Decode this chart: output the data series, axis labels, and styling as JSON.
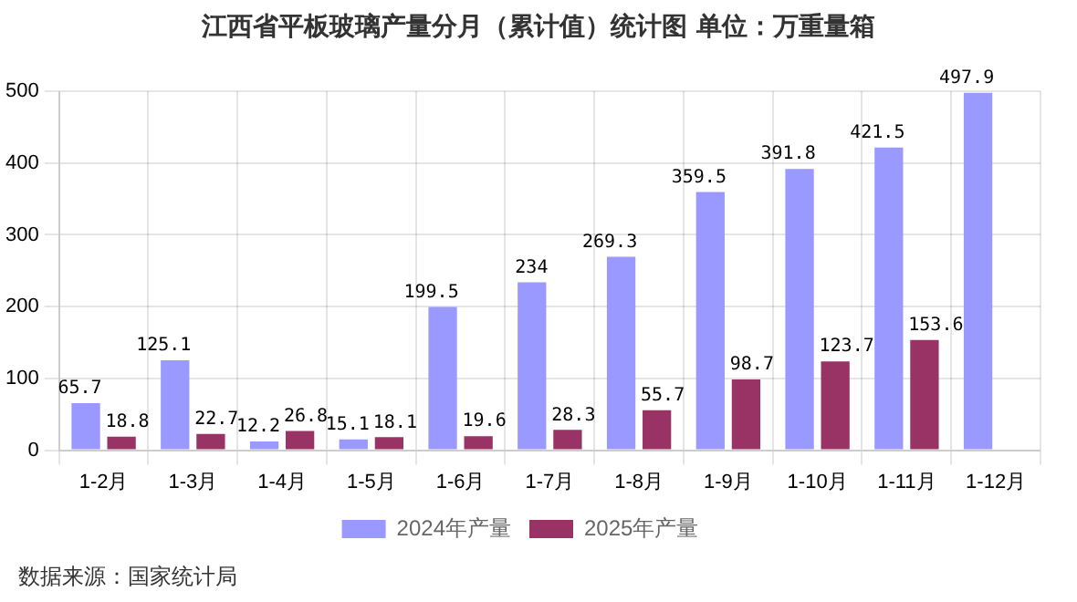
{
  "chart_data": {
    "type": "bar",
    "title": "江西省平板玻璃产量分月（累计值）统计图 单位：万重量箱",
    "categories": [
      "1-2月",
      "1-3月",
      "1-4月",
      "1-5月",
      "1-6月",
      "1-7月",
      "1-8月",
      "1-9月",
      "1-10月",
      "1-11月",
      "1-12月"
    ],
    "series": [
      {
        "name": "2024年产量",
        "color": "#9999ff",
        "values": [
          65.7,
          125.1,
          12.2,
          15.1,
          199.5,
          234,
          269.3,
          359.5,
          391.8,
          421.5,
          497.9
        ]
      },
      {
        "name": "2025年产量",
        "color": "#993366",
        "values": [
          18.8,
          22.7,
          26.8,
          18.1,
          19.6,
          28.3,
          55.7,
          98.7,
          123.7,
          153.6,
          null
        ]
      }
    ],
    "ylim": [
      0,
      500
    ],
    "yticks": [
      0,
      100,
      200,
      300,
      400,
      500
    ],
    "grid": true,
    "legend": "bottom",
    "data_labels": true,
    "annotations": [
      "数据来源：国家统计局"
    ]
  }
}
